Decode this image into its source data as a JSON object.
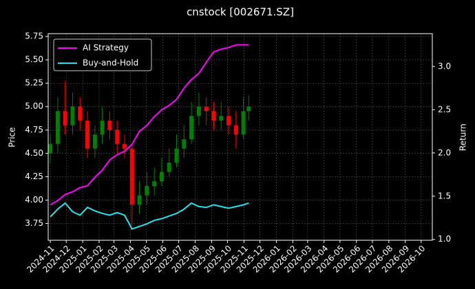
{
  "chart_data": {
    "type": "candlestick",
    "title": "cnstock [002671.SZ]",
    "ylabel": "Price",
    "y2label": "Return",
    "x": [
      "2024-11-01",
      "2024-11-15",
      "2024-11-29",
      "2024-12-13",
      "2024-12-27",
      "2025-01-10",
      "2025-01-24",
      "2025-02-07",
      "2025-02-21",
      "2025-03-07",
      "2025-03-21",
      "2025-04-04",
      "2025-04-18",
      "2025-05-02",
      "2025-05-16",
      "2025-05-30",
      "2025-06-13",
      "2025-06-27",
      "2025-07-11",
      "2025-07-25",
      "2025-08-08",
      "2025-08-22",
      "2025-09-05",
      "2025-09-19",
      "2025-10-03",
      "2025-10-17",
      "2025-10-31",
      "2025-11-10"
    ],
    "open": [
      4.5,
      4.6,
      4.95,
      4.8,
      5.0,
      4.85,
      4.55,
      4.7,
      4.85,
      4.75,
      4.6,
      4.55,
      3.95,
      4.05,
      4.15,
      4.2,
      4.3,
      4.4,
      4.55,
      4.65,
      4.9,
      5.0,
      4.95,
      4.85,
      4.9,
      4.8,
      4.7,
      4.95
    ],
    "high": [
      4.7,
      5.1,
      5.27,
      5.15,
      5.1,
      4.95,
      4.8,
      5.0,
      4.95,
      4.85,
      4.7,
      4.6,
      4.2,
      4.3,
      4.35,
      4.45,
      4.55,
      4.7,
      4.8,
      5.05,
      5.15,
      5.1,
      5.05,
      5.05,
      5.0,
      4.95,
      5.1,
      5.12
    ],
    "low": [
      4.4,
      4.5,
      4.7,
      4.7,
      4.75,
      4.45,
      4.45,
      4.6,
      4.65,
      4.5,
      4.45,
      3.72,
      3.85,
      3.95,
      4.05,
      4.15,
      4.25,
      4.35,
      4.45,
      4.6,
      4.8,
      4.8,
      4.75,
      4.75,
      4.7,
      4.55,
      4.65,
      4.85
    ],
    "close": [
      4.6,
      4.95,
      4.8,
      5.0,
      4.85,
      4.55,
      4.7,
      4.85,
      4.75,
      4.6,
      4.55,
      3.95,
      4.05,
      4.15,
      4.2,
      4.3,
      4.4,
      4.55,
      4.65,
      4.9,
      5.0,
      4.95,
      4.85,
      4.9,
      4.8,
      4.7,
      4.95,
      5.0
    ],
    "up_color": "#008000",
    "down_color": "#ff0000",
    "series": [
      {
        "name": "AI Strategy",
        "color": "#ff00ff",
        "axis": "y2",
        "values": [
          1.4,
          1.45,
          1.52,
          1.55,
          1.6,
          1.62,
          1.72,
          1.8,
          1.92,
          1.98,
          2.02,
          2.1,
          2.25,
          2.32,
          2.42,
          2.5,
          2.55,
          2.62,
          2.75,
          2.85,
          2.92,
          3.05,
          3.17,
          3.2,
          3.22,
          3.25,
          3.25,
          3.25
        ]
      },
      {
        "name": "Buy-and-Hold",
        "color": "#22e5f0",
        "axis": "y2",
        "values": [
          1.26,
          1.35,
          1.42,
          1.32,
          1.28,
          1.37,
          1.33,
          1.3,
          1.28,
          1.31,
          1.28,
          1.12,
          1.15,
          1.18,
          1.22,
          1.24,
          1.27,
          1.3,
          1.35,
          1.42,
          1.38,
          1.37,
          1.4,
          1.38,
          1.36,
          1.38,
          1.4,
          1.42
        ]
      }
    ],
    "xlim": [
      "2024-10-28",
      "2026-10-22"
    ],
    "xticks": [
      "2024-11",
      "2024-12",
      "2025-01",
      "2025-02",
      "2025-03",
      "2025-04",
      "2025-05",
      "2025-06",
      "2025-07",
      "2025-08",
      "2025-09",
      "2025-10",
      "2025-11",
      "2025-12",
      "2026-01",
      "2026-02",
      "2026-03",
      "2026-04",
      "2026-05",
      "2026-06",
      "2026-07",
      "2026-08",
      "2026-09",
      "2026-10"
    ],
    "ylim": [
      3.57,
      5.78
    ],
    "yticks": [
      3.75,
      {
        "value": 4,
        "label": "4.00"
      },
      4.25,
      {
        "value": 4.5,
        "label": "4.50"
      },
      4.75,
      {
        "value": 5,
        "label": "5.00"
      },
      5.25,
      {
        "value": 5.5,
        "label": "5.50"
      },
      5.75
    ],
    "y2lim": [
      0.99,
      3.38
    ],
    "y2ticks": [
      {
        "value": 1,
        "label": "1.0"
      },
      1.5,
      {
        "value": 2,
        "label": "2.0"
      },
      2.5,
      {
        "value": 3,
        "label": "3.0"
      }
    ],
    "grid": true,
    "legend": "upper left"
  }
}
